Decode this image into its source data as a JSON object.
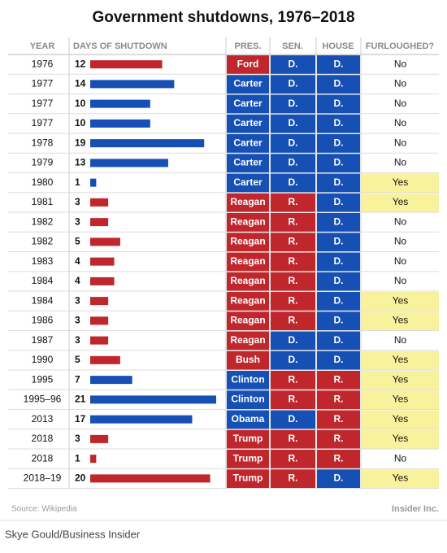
{
  "title": "Government shutdowns, 1976–2018",
  "table": {
    "headers": [
      "YEAR",
      "DAYS OF SHUTDOWN",
      "PRES.",
      "SEN.",
      "HOUSE",
      "FURLOUGHED?"
    ],
    "rows": [
      {
        "year": "1976",
        "days": 12,
        "pres": "Ford",
        "sen": "D.",
        "house": "D.",
        "furloughed": "No",
        "colors": [
          "#c0272d",
          "#c0272d",
          "#1750b5",
          "#1750b5",
          "#ffffff"
        ]
      },
      {
        "year": "1977",
        "days": 14,
        "pres": "Carter",
        "sen": "D.",
        "house": "D.",
        "furloughed": "No",
        "colors": [
          "#1750b5",
          "#1750b5",
          "#1750b5",
          "#1750b5",
          "#ffffff"
        ]
      },
      {
        "year": "1977",
        "days": 10,
        "pres": "Carter",
        "sen": "D.",
        "house": "D.",
        "furloughed": "No",
        "colors": [
          "#1750b5",
          "#1750b5",
          "#1750b5",
          "#1750b5",
          "#ffffff"
        ]
      },
      {
        "year": "1977",
        "days": 10,
        "pres": "Carter",
        "sen": "D.",
        "house": "D.",
        "furloughed": "No",
        "colors": [
          "#1750b5",
          "#1750b5",
          "#1750b5",
          "#1750b5",
          "#ffffff"
        ]
      },
      {
        "year": "1978",
        "days": 19,
        "pres": "Carter",
        "sen": "D.",
        "house": "D.",
        "furloughed": "No",
        "colors": [
          "#1750b5",
          "#1750b5",
          "#1750b5",
          "#1750b5",
          "#ffffff"
        ]
      },
      {
        "year": "1979",
        "days": 13,
        "pres": "Carter",
        "sen": "D.",
        "house": "D.",
        "furloughed": "No",
        "colors": [
          "#1750b5",
          "#1750b5",
          "#1750b5",
          "#1750b5",
          "#ffffff"
        ]
      },
      {
        "year": "1980",
        "days": 1,
        "pres": "Carter",
        "sen": "D.",
        "house": "D.",
        "furloughed": "Yes",
        "colors": [
          "#1750b5",
          "#1750b5",
          "#1750b5",
          "#1750b5",
          "#f7f29b"
        ]
      },
      {
        "year": "1981",
        "days": 3,
        "pres": "Reagan",
        "sen": "R.",
        "house": "D.",
        "furloughed": "Yes",
        "colors": [
          "#c0272d",
          "#c0272d",
          "#c0272d",
          "#1750b5",
          "#f7f29b"
        ]
      },
      {
        "year": "1982",
        "days": 3,
        "pres": "Reagan",
        "sen": "R.",
        "house": "D.",
        "furloughed": "No",
        "colors": [
          "#c0272d",
          "#c0272d",
          "#c0272d",
          "#1750b5",
          "#ffffff"
        ]
      },
      {
        "year": "1982",
        "days": 5,
        "pres": "Reagan",
        "sen": "R.",
        "house": "D.",
        "furloughed": "No",
        "colors": [
          "#c0272d",
          "#c0272d",
          "#c0272d",
          "#1750b5",
          "#ffffff"
        ]
      },
      {
        "year": "1983",
        "days": 4,
        "pres": "Reagan",
        "sen": "R.",
        "house": "D.",
        "furloughed": "No",
        "colors": [
          "#c0272d",
          "#c0272d",
          "#c0272d",
          "#1750b5",
          "#ffffff"
        ]
      },
      {
        "year": "1984",
        "days": 4,
        "pres": "Reagan",
        "sen": "R.",
        "house": "D.",
        "furloughed": "No",
        "colors": [
          "#c0272d",
          "#c0272d",
          "#c0272d",
          "#1750b5",
          "#ffffff"
        ]
      },
      {
        "year": "1984",
        "days": 3,
        "pres": "Reagan",
        "sen": "R.",
        "house": "D.",
        "furloughed": "Yes",
        "colors": [
          "#c0272d",
          "#c0272d",
          "#c0272d",
          "#1750b5",
          "#f7f29b"
        ]
      },
      {
        "year": "1986",
        "days": 3,
        "pres": "Reagan",
        "sen": "R.",
        "house": "D.",
        "furloughed": "Yes",
        "colors": [
          "#c0272d",
          "#c0272d",
          "#c0272d",
          "#1750b5",
          "#f7f29b"
        ]
      },
      {
        "year": "1987",
        "days": 3,
        "pres": "Reagan",
        "sen": "D.",
        "house": "D.",
        "furloughed": "No",
        "colors": [
          "#c0272d",
          "#c0272d",
          "#1750b5",
          "#1750b5",
          "#ffffff"
        ]
      },
      {
        "year": "1990",
        "days": 5,
        "pres": "Bush",
        "sen": "D.",
        "house": "D.",
        "furloughed": "Yes",
        "colors": [
          "#c0272d",
          "#c0272d",
          "#1750b5",
          "#1750b5",
          "#f7f29b"
        ]
      },
      {
        "year": "1995",
        "days": 7,
        "pres": "Clinton",
        "sen": "R.",
        "house": "R.",
        "furloughed": "Yes",
        "colors": [
          "#1750b5",
          "#1750b5",
          "#c0272d",
          "#c0272d",
          "#f7f29b"
        ]
      },
      {
        "year": "1995–96",
        "days": 21,
        "pres": "Clinton",
        "sen": "R.",
        "house": "R.",
        "furloughed": "Yes",
        "colors": [
          "#1750b5",
          "#1750b5",
          "#c0272d",
          "#c0272d",
          "#f7f29b"
        ]
      },
      {
        "year": "2013",
        "days": 17,
        "pres": "Obama",
        "sen": "D.",
        "house": "R.",
        "furloughed": "Yes",
        "colors": [
          "#1750b5",
          "#1750b5",
          "#1750b5",
          "#c0272d",
          "#f7f29b"
        ]
      },
      {
        "year": "2018",
        "days": 3,
        "pres": "Trump",
        "sen": "R.",
        "house": "R.",
        "furloughed": "Yes",
        "colors": [
          "#c0272d",
          "#c0272d",
          "#c0272d",
          "#c0272d",
          "#f7f29b"
        ]
      },
      {
        "year": "2018",
        "days": 1,
        "pres": "Trump",
        "sen": "R.",
        "house": "R.",
        "furloughed": "No",
        "colors": [
          "#c0272d",
          "#c0272d",
          "#c0272d",
          "#c0272d",
          "#ffffff"
        ]
      },
      {
        "year": "2018–19",
        "days": 20,
        "pres": "Trump",
        "sen": "R.",
        "house": "D.",
        "furloughed": "Yes",
        "colors": [
          "#c0272d",
          "#c0272d",
          "#c0272d",
          "#1750b5",
          "#f7f29b"
        ]
      }
    ]
  },
  "source": "Source: Wikipedia",
  "brand": "Insider Inc.",
  "credit": "Skye Gould/Business Insider"
}
